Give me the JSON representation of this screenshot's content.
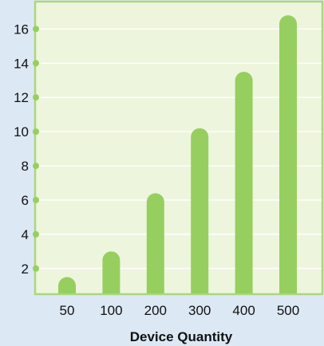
{
  "chart_data": {
    "type": "bar",
    "title": "",
    "xlabel": "Device Quantity",
    "ylabel": "",
    "categories": [
      "50",
      "100",
      "200",
      "300",
      "400",
      "500"
    ],
    "values": [
      1.5,
      3.0,
      6.4,
      10.2,
      13.5,
      16.8
    ],
    "ylim": [
      0.5,
      17.6
    ],
    "yticks": [
      2,
      4,
      6,
      8,
      10,
      12,
      14,
      16
    ],
    "grid": true,
    "legend": "none",
    "colors": {
      "bar": "#96cf60",
      "plot_background": "#eef5dd",
      "plot_border": "#a9d77e",
      "gridline": "#ffffff",
      "tick_dot": "#96cf60",
      "page_background": "#dde8f5"
    }
  }
}
